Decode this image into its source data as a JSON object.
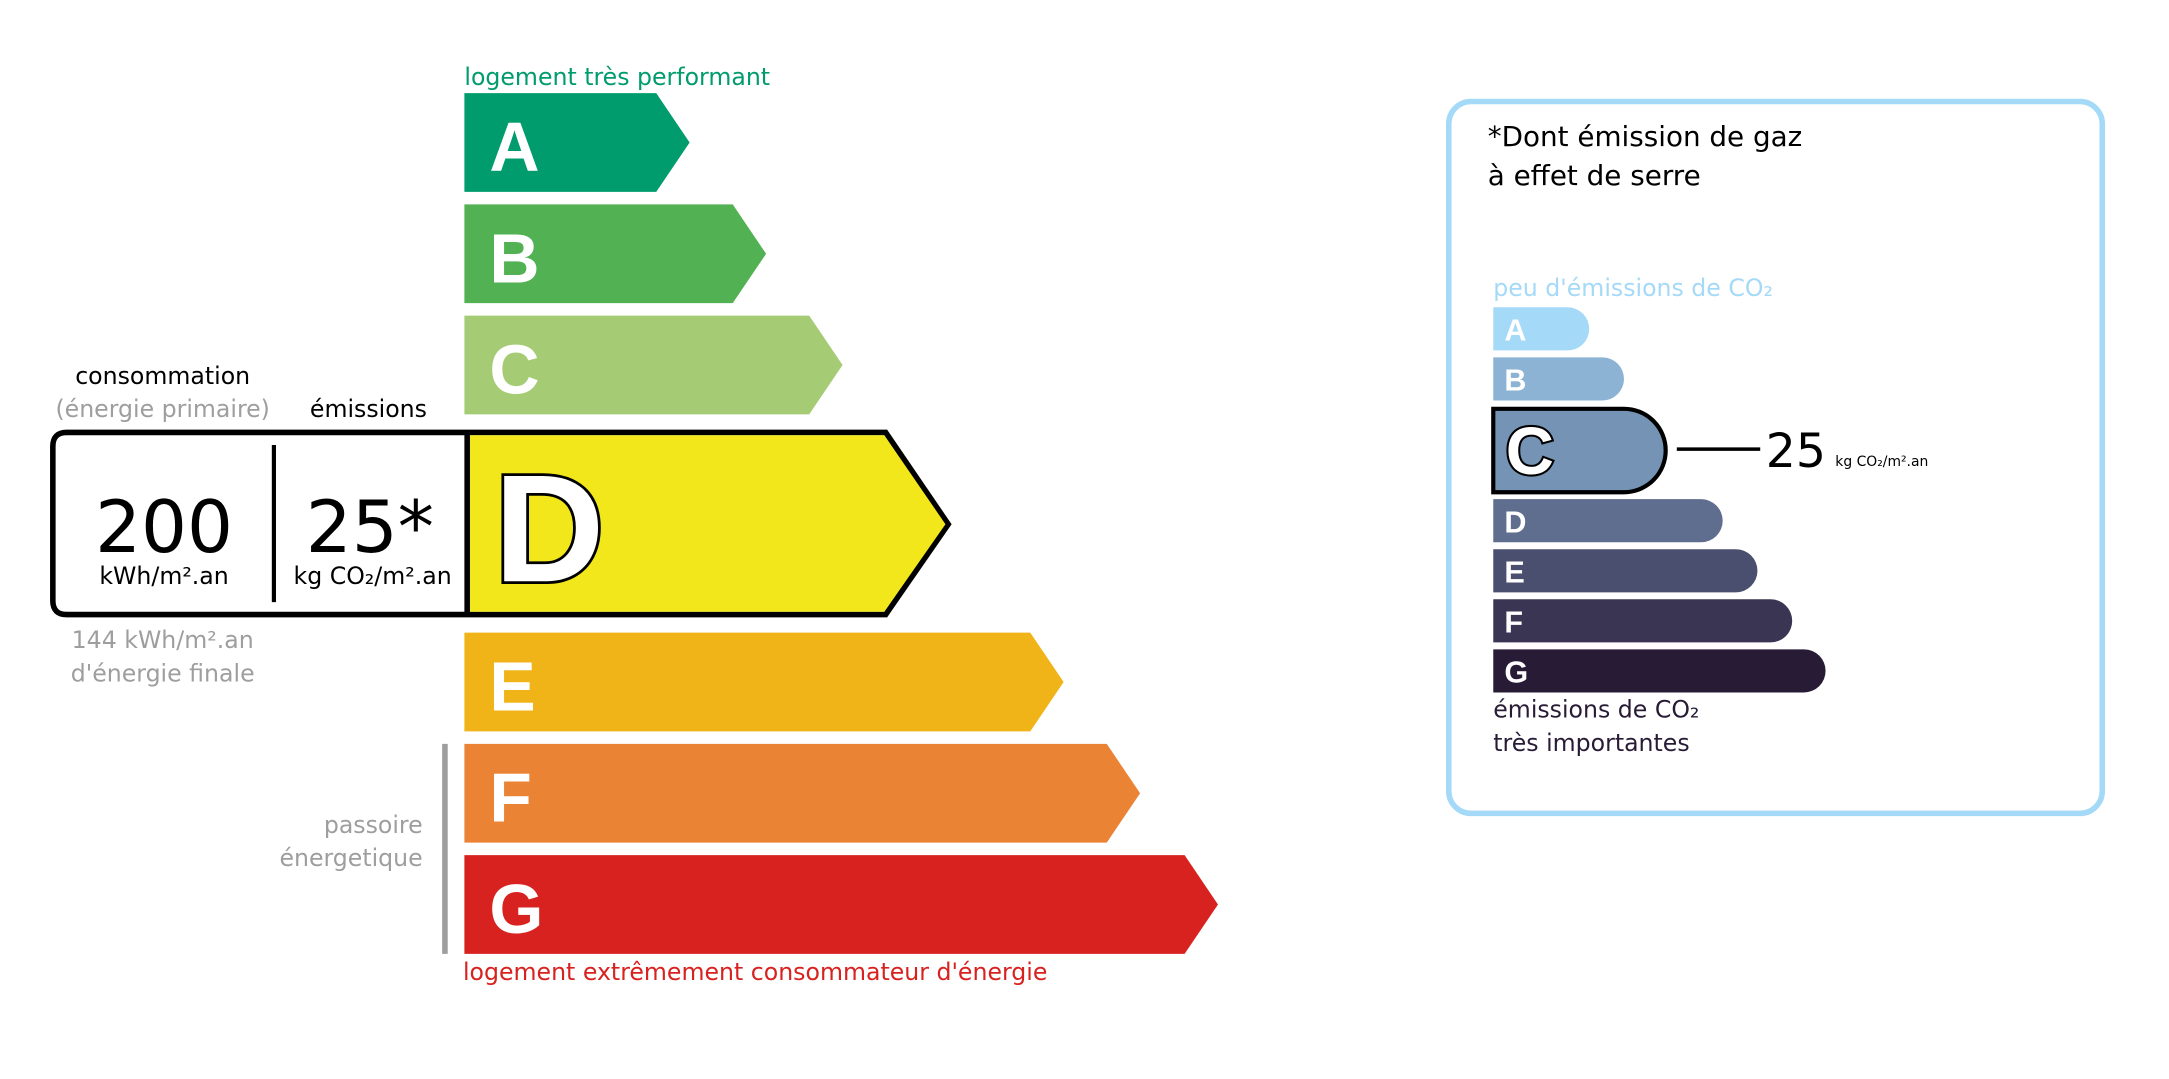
{
  "energy": {
    "top_label": "logement très performant",
    "bottom_label": "logement extrêmement consommateur d'énergie",
    "passoire_label": [
      "passoire",
      "énergetique"
    ],
    "classes": [
      {
        "letter": "A",
        "color": "#009c6d"
      },
      {
        "letter": "B",
        "color": "#52b153"
      },
      {
        "letter": "C",
        "color": "#a5cc74"
      },
      {
        "letter": "D",
        "color": "#f2e71b"
      },
      {
        "letter": "E",
        "color": "#f0b418"
      },
      {
        "letter": "F",
        "color": "#eb8334"
      },
      {
        "letter": "G",
        "color": "#d7221f"
      }
    ],
    "current_class": "D",
    "consumption_header": "consommation",
    "consumption_subheader": "(énergie primaire)",
    "emissions_header": "émissions",
    "consumption_value": "200",
    "consumption_unit": "kWh/m².an",
    "emissions_value": "25*",
    "emissions_unit": "kg CO₂/m².an",
    "final_energy_value": "144 kWh/m².an",
    "final_energy_label": "d'énergie finale"
  },
  "ges": {
    "title_line1": "*Dont émission de gaz",
    "title_line2": "à effet de serre",
    "top_label": "peu d'émissions de CO₂",
    "bottom_label_line1": "émissions de CO₂",
    "bottom_label_line2": "très importantes",
    "classes": [
      {
        "letter": "A",
        "color": "#a4d9f7"
      },
      {
        "letter": "B",
        "color": "#8db3d4"
      },
      {
        "letter": "C",
        "color": "#7593b4"
      },
      {
        "letter": "D",
        "color": "#5f6d8f"
      },
      {
        "letter": "E",
        "color": "#4b4f6f"
      },
      {
        "letter": "F",
        "color": "#393552"
      },
      {
        "letter": "G",
        "color": "#281b35"
      }
    ],
    "current_class": "C",
    "value": "25",
    "unit": "kg CO₂/m².an",
    "border_color": "#a4d9f7"
  }
}
